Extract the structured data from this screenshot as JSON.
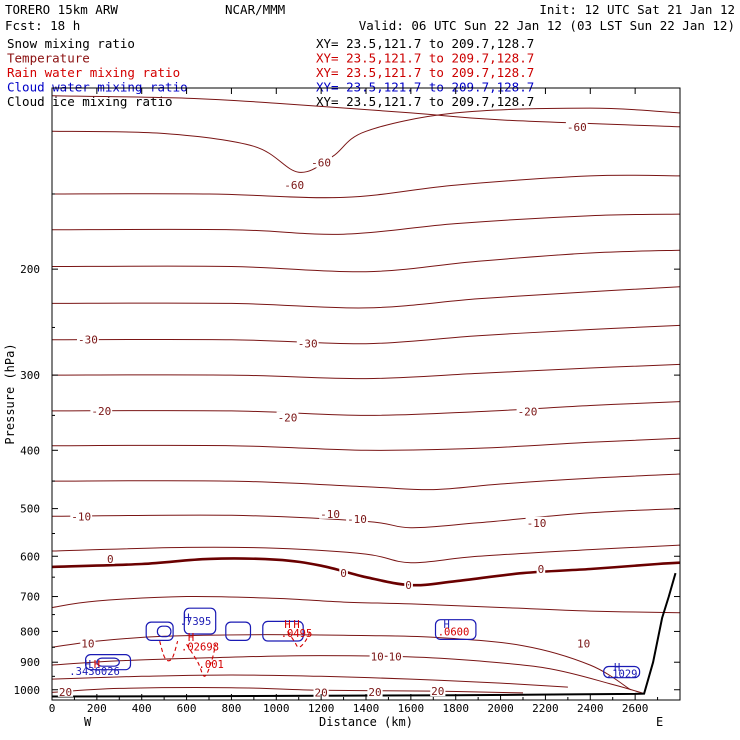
{
  "header": {
    "line1_left": "TORERO  15km ARW",
    "line1_center": "NCAR/MMM",
    "line1_right": "Init: 12 UTC Sat 21 Jan 12",
    "line2_left": "Fcst:   18 h",
    "line2_right": "Valid: 06 UTC Sun 22 Jan 12 (03 LST Sun 22 Jan 12)"
  },
  "fields": [
    {
      "label": "Snow mixing ratio",
      "color": "#000000",
      "xy": "XY=  23.5,121.7 to 209.7,128.7",
      "xy_color": "#000000"
    },
    {
      "label": "Temperature",
      "color": "#8b1010",
      "xy": "XY=  23.5,121.7 to 209.7,128.7",
      "xy_color": "#cc0000"
    },
    {
      "label": "Rain water mixing ratio",
      "color": "#d40000",
      "xy": "XY=  23.5,121.7 to 209.7,128.7",
      "xy_color": "#cc0000"
    },
    {
      "label": "Cloud water mixing ratio",
      "color": "#0000c8",
      "xy": "XY=  23.5,121.7 to 209.7,128.7",
      "xy_color": "#0000c8"
    },
    {
      "label": "Cloud ice mixing ratio",
      "color": "#000000",
      "xy": "XY=  23.5,121.7 to 209.7,128.7",
      "xy_color": "#000000"
    }
  ],
  "colors": {
    "temperature": "#7a1515",
    "temperature_zero": "#6a0000",
    "rain": "#d40000",
    "cloud_water": "#1a1ab4",
    "terrain": "#000000"
  },
  "chart_data": {
    "type": "contour",
    "xlabel": "Distance (km)",
    "ylabel": "Pressure (hPa)",
    "xlim": [
      0,
      2800
    ],
    "ylim": [
      1040,
      100
    ],
    "y_scale": "log",
    "x_ticks": [
      0,
      200,
      400,
      600,
      800,
      1000,
      1200,
      1400,
      1600,
      1800,
      2000,
      2200,
      2400,
      2600
    ],
    "y_ticks": [
      200,
      300,
      400,
      500,
      600,
      700,
      800,
      900,
      1000
    ],
    "x_end_labels": {
      "left": "W",
      "right": "E"
    },
    "terrain_top": [
      [
        0,
        1026
      ],
      [
        600,
        1025
      ],
      [
        1200,
        1023
      ],
      [
        1800,
        1021
      ],
      [
        2300,
        1018
      ],
      [
        2600,
        1016
      ],
      [
        2640,
        1015
      ],
      [
        2680,
        900
      ],
      [
        2720,
        760
      ],
      [
        2750,
        700
      ],
      [
        2780,
        640
      ]
    ],
    "temperature_contours": [
      {
        "level": -60,
        "points": [
          [
            0,
            103
          ],
          [
            600,
            104
          ],
          [
            1000,
            106
          ],
          [
            1600,
            110
          ],
          [
            2000,
            113
          ],
          [
            2800,
            116
          ]
        ]
      },
      {
        "level": -60,
        "points": [
          [
            0,
            118
          ],
          [
            500,
            119
          ],
          [
            900,
            125
          ],
          [
            1100,
            138
          ],
          [
            1250,
            130
          ],
          [
            1400,
            118
          ],
          [
            1800,
            110
          ],
          [
            2400,
            108
          ],
          [
            2800,
            110
          ]
        ]
      },
      {
        "level": null,
        "points": [
          [
            0,
            150
          ],
          [
            700,
            150
          ],
          [
            1300,
            152
          ],
          [
            1800,
            145
          ],
          [
            2400,
            140
          ],
          [
            2800,
            140
          ]
        ]
      },
      {
        "level": null,
        "points": [
          [
            0,
            172
          ],
          [
            800,
            172
          ],
          [
            1300,
            175
          ],
          [
            1800,
            168
          ],
          [
            2400,
            163
          ],
          [
            2800,
            162
          ]
        ]
      },
      {
        "level": null,
        "points": [
          [
            0,
            198
          ],
          [
            800,
            198
          ],
          [
            1400,
            202
          ],
          [
            1900,
            194
          ],
          [
            2400,
            188
          ],
          [
            2800,
            186
          ]
        ]
      },
      {
        "level": null,
        "points": [
          [
            0,
            228
          ],
          [
            800,
            228
          ],
          [
            1400,
            232
          ],
          [
            1900,
            224
          ],
          [
            2400,
            218
          ],
          [
            2800,
            214
          ]
        ]
      },
      {
        "level": -30,
        "points": [
          [
            0,
            262
          ],
          [
            800,
            262
          ],
          [
            1400,
            266
          ],
          [
            1900,
            258
          ],
          [
            2400,
            252
          ],
          [
            2800,
            248
          ]
        ]
      },
      {
        "level": -30,
        "points": [
          [
            0,
            300
          ],
          [
            800,
            300
          ],
          [
            1400,
            304
          ],
          [
            1900,
            298
          ],
          [
            2400,
            292
          ],
          [
            2800,
            288
          ]
        ]
      },
      {
        "level": -20,
        "points": [
          [
            0,
            344
          ],
          [
            800,
            344
          ],
          [
            1400,
            350
          ],
          [
            1900,
            345
          ],
          [
            2400,
            337
          ],
          [
            2800,
            332
          ]
        ]
      },
      {
        "level": -20,
        "points": [
          [
            0,
            393
          ],
          [
            800,
            393
          ],
          [
            1400,
            400
          ],
          [
            1900,
            397
          ],
          [
            2400,
            388
          ],
          [
            2800,
            382
          ]
        ]
      },
      {
        "level": null,
        "points": [
          [
            0,
            450
          ],
          [
            800,
            450
          ],
          [
            1400,
            460
          ],
          [
            1700,
            465
          ],
          [
            2000,
            455
          ],
          [
            2400,
            445
          ],
          [
            2800,
            438
          ]
        ]
      },
      {
        "level": -10,
        "points": [
          [
            0,
            515
          ],
          [
            800,
            513
          ],
          [
            1400,
            525
          ],
          [
            1600,
            538
          ],
          [
            1900,
            528
          ],
          [
            2400,
            508
          ],
          [
            2800,
            500
          ]
        ]
      },
      {
        "level": -10,
        "points": [
          [
            0,
            588
          ],
          [
            600,
            580
          ],
          [
            1000,
            582
          ],
          [
            1400,
            595
          ],
          [
            1600,
            615
          ],
          [
            1900,
            600
          ],
          [
            2400,
            585
          ],
          [
            2800,
            575
          ]
        ]
      },
      {
        "level": 0,
        "points": [
          [
            0,
            625
          ],
          [
            400,
            618
          ],
          [
            700,
            606
          ],
          [
            1000,
            608
          ],
          [
            1200,
            622
          ],
          [
            1400,
            650
          ],
          [
            1600,
            670
          ],
          [
            1800,
            660
          ],
          [
            2100,
            640
          ],
          [
            2400,
            630
          ],
          [
            2700,
            618
          ],
          [
            2800,
            615
          ]
        ]
      },
      {
        "level": null,
        "points": [
          [
            0,
            730
          ],
          [
            200,
            712
          ],
          [
            600,
            700
          ],
          [
            1000,
            705
          ],
          [
            1300,
            715
          ],
          [
            1600,
            720
          ],
          [
            2000,
            730
          ],
          [
            2400,
            740
          ],
          [
            2800,
            745
          ]
        ]
      },
      {
        "level": 10,
        "points": [
          [
            0,
            850
          ],
          [
            200,
            830
          ],
          [
            500,
            815
          ],
          [
            900,
            810
          ],
          [
            1300,
            812
          ],
          [
            1700,
            818
          ],
          [
            2100,
            845
          ],
          [
            2400,
            910
          ],
          [
            2580,
            1000
          ]
        ]
      },
      {
        "level": 10,
        "points": [
          [
            0,
            910
          ],
          [
            300,
            895
          ],
          [
            700,
            885
          ],
          [
            1100,
            878
          ],
          [
            1500,
            880
          ],
          [
            1800,
            890
          ],
          [
            2200,
            920
          ],
          [
            2500,
            980
          ],
          [
            2640,
            1015
          ]
        ]
      },
      {
        "level": null,
        "points": [
          [
            0,
            960
          ],
          [
            400,
            950
          ],
          [
            800,
            945
          ],
          [
            1200,
            950
          ],
          [
            1600,
            960
          ],
          [
            2000,
            975
          ],
          [
            2300,
            990
          ]
        ]
      },
      {
        "level": 20,
        "points": [
          [
            0,
            1010
          ],
          [
            300,
            995
          ],
          [
            800,
            992
          ],
          [
            1200,
            1002
          ],
          [
            1700,
            1005
          ],
          [
            2100,
            1012
          ]
        ]
      }
    ],
    "rain_contours": [
      {
        "label": ".001",
        "points": [
          [
            600,
            840
          ],
          [
            650,
            900
          ],
          [
            680,
            950
          ],
          [
            710,
            900
          ],
          [
            730,
            840
          ]
        ]
      },
      {
        "label": "",
        "points": [
          [
            480,
            830
          ],
          [
            500,
            880
          ],
          [
            520,
            895
          ],
          [
            540,
            880
          ],
          [
            560,
            830
          ]
        ]
      },
      {
        "label": "",
        "points": [
          [
            1050,
            800
          ],
          [
            1080,
            830
          ],
          [
            1100,
            850
          ],
          [
            1130,
            830
          ],
          [
            1150,
            800
          ]
        ]
      }
    ],
    "cloud_water_contours": [
      {
        "cx": 480,
        "cy": 800,
        "rx": 60,
        "rp": 28
      },
      {
        "cx": 500,
        "cy": 800,
        "rx": 30,
        "rp": 16
      },
      {
        "cx": 660,
        "cy": 770,
        "rx": 70,
        "rp": 38
      },
      {
        "cx": 830,
        "cy": 800,
        "rx": 55,
        "rp": 28
      },
      {
        "cx": 1030,
        "cy": 800,
        "rx": 90,
        "rp": 30
      },
      {
        "cx": 1800,
        "cy": 795,
        "rx": 90,
        "rp": 30
      },
      {
        "cx": 250,
        "cy": 900,
        "rx": 100,
        "rp": 26
      },
      {
        "cx": 250,
        "cy": 900,
        "rx": 50,
        "rp": 14
      },
      {
        "cx": 2540,
        "cy": 935,
        "rx": 80,
        "rp": 20
      }
    ],
    "annotations": [
      {
        "x": 160,
        "y": 920,
        "text": "H",
        "color": "#1a1ab4"
      },
      {
        "x": 200,
        "y": 920,
        "text": "H",
        "color": "#d40000"
      },
      {
        "x": 190,
        "y": 945,
        "text": ".3436026",
        "color": "#1a1ab4"
      },
      {
        "x": 600,
        "y": 770,
        "text": "H",
        "color": "#1a1ab4"
      },
      {
        "x": 640,
        "y": 780,
        "text": ".7395",
        "color": "#1a1ab4"
      },
      {
        "x": 620,
        "y": 830,
        "text": "H",
        "color": "#d40000"
      },
      {
        "x": 660,
        "y": 860,
        "text": ".02698",
        "color": "#d40000"
      },
      {
        "x": 710,
        "y": 920,
        "text": ".001",
        "color": "#d40000"
      },
      {
        "x": 1050,
        "y": 790,
        "text": "H",
        "color": "#d40000"
      },
      {
        "x": 1090,
        "y": 790,
        "text": "H",
        "color": "#d40000"
      },
      {
        "x": 1090,
        "y": 818,
        "text": ".0495",
        "color": "#d40000"
      },
      {
        "x": 1760,
        "y": 790,
        "text": "H",
        "color": "#1a1ab4"
      },
      {
        "x": 1790,
        "y": 812,
        "text": ".0600",
        "color": "#d40000"
      },
      {
        "x": 2520,
        "y": 930,
        "text": "H",
        "color": "#1a1ab4"
      },
      {
        "x": 2540,
        "y": 955,
        "text": ".1029",
        "color": "#1a1ab4"
      }
    ],
    "contour_labels": [
      {
        "x": 1200,
        "y": 133,
        "text": "-60"
      },
      {
        "x": 2340,
        "y": 116,
        "text": "-60"
      },
      {
        "x": 1080,
        "y": 145,
        "text": "-60"
      },
      {
        "x": 160,
        "y": 262,
        "text": "-30"
      },
      {
        "x": 1140,
        "y": 266,
        "text": "-30"
      },
      {
        "x": 220,
        "y": 344,
        "text": "-20"
      },
      {
        "x": 1050,
        "y": 353,
        "text": "-20"
      },
      {
        "x": 2120,
        "y": 345,
        "text": "-20"
      },
      {
        "x": 130,
        "y": 515,
        "text": "-10"
      },
      {
        "x": 1360,
        "y": 520,
        "text": "-10"
      },
      {
        "x": 2160,
        "y": 528,
        "text": "-10"
      },
      {
        "x": 1240,
        "y": 510,
        "text": "-10"
      },
      {
        "x": 260,
        "y": 606,
        "text": "0"
      },
      {
        "x": 1300,
        "y": 640,
        "text": "0"
      },
      {
        "x": 1590,
        "y": 670,
        "text": "0"
      },
      {
        "x": 2180,
        "y": 630,
        "text": "0"
      },
      {
        "x": 160,
        "y": 838,
        "text": "10"
      },
      {
        "x": 2370,
        "y": 838,
        "text": "10"
      },
      {
        "x": 1450,
        "y": 880,
        "text": "10"
      },
      {
        "x": 1530,
        "y": 880,
        "text": "10"
      },
      {
        "x": 60,
        "y": 1008,
        "text": "20"
      },
      {
        "x": 1200,
        "y": 1010,
        "text": "20"
      },
      {
        "x": 1440,
        "y": 1008,
        "text": "20"
      },
      {
        "x": 1720,
        "y": 1005,
        "text": "20"
      }
    ]
  }
}
